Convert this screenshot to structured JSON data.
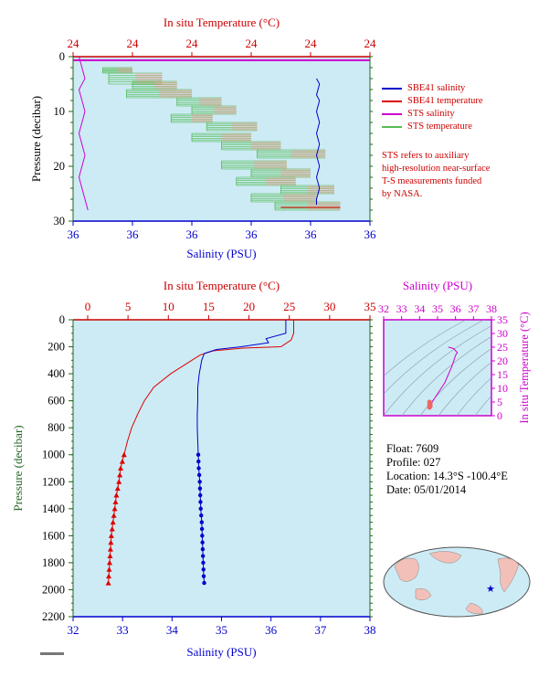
{
  "top_panel": {
    "title": "In situ Temperature (°C)",
    "xlabel": "Salinity (PSU)",
    "ylabel": "Pressure (decibar)",
    "temp_ticks": [
      "24",
      "24",
      "24",
      "24",
      "24",
      "24"
    ],
    "sal_ticks": [
      "36",
      "36",
      "36",
      "36",
      "36",
      "36"
    ],
    "p_ticks": [
      "0",
      "10",
      "20",
      "30"
    ]
  },
  "legend": [
    {
      "label": "SBE41 salinity",
      "color": "#0000cc"
    },
    {
      "label": "SBE41 temperature",
      "color": "#dd0000"
    },
    {
      "label": "STS salinity",
      "color": "#cc00cc"
    },
    {
      "label": "STS temperature",
      "color": "#55bb55"
    }
  ],
  "note_lines": [
    "STS refers to auxiliary",
    "high-resolution near-surface",
    "T-S measurements funded",
    "by NASA."
  ],
  "main_panel": {
    "title": "In situ Temperature (°C)",
    "xlabel": "Salinity (PSU)",
    "ylabel": "Pressure (decibar)",
    "temp_ticks": [
      "0",
      "5",
      "10",
      "15",
      "20",
      "25",
      "30",
      "35"
    ],
    "sal_ticks": [
      "32",
      "33",
      "34",
      "35",
      "36",
      "37",
      "38"
    ],
    "p_ticks": [
      "0",
      "200",
      "400",
      "600",
      "800",
      "1000",
      "1200",
      "1400",
      "1600",
      "1800",
      "2000",
      "2200"
    ]
  },
  "ts_panel": {
    "title": "Salinity (PSU)",
    "ylabel": "In situ Temperature (°C)",
    "sal_ticks": [
      "32",
      "33",
      "34",
      "35",
      "36",
      "37",
      "38"
    ],
    "temp_ticks": [
      "0",
      "5",
      "10",
      "15",
      "20",
      "25",
      "30",
      "35"
    ]
  },
  "info": {
    "float": "Float:  7609",
    "profile": "Profile:  027",
    "location": "Location:  14.3°S  -100.4°E",
    "date": "Date:  05/01/2014"
  },
  "colors": {
    "temperature": "#dd0000",
    "salinity": "#0000cc",
    "sts_salinity": "#cc00cc",
    "sts_temperature": "#55bb55",
    "plot_bg": "#cdebf5",
    "axis_red": "#cc0000",
    "axis_blue": "#0000cc",
    "ts_magenta": "#cc00cc"
  },
  "chart_data": [
    {
      "type": "line",
      "name_hint": "near-surface profile",
      "ylim": [
        30,
        0
      ],
      "sbe41_salinity_series": {
        "pressure": [
          4,
          5,
          7,
          8,
          10,
          12,
          14,
          16,
          18,
          20,
          22,
          24,
          26,
          27
        ],
        "salinity_pos": [
          0.82,
          0.83,
          0.82,
          0.83,
          0.82,
          0.83,
          0.82,
          0.83,
          0.82,
          0.83,
          0.82,
          0.83,
          0.82,
          0.82
        ]
      },
      "sts_salinity_series": {
        "pressure": [
          0,
          2,
          4,
          6,
          8,
          10,
          12,
          14,
          16,
          18,
          20,
          22,
          24,
          26,
          28
        ],
        "salinity_pos": [
          0.02,
          0.03,
          0.04,
          0.02,
          0.03,
          0.04,
          0.03,
          0.02,
          0.03,
          0.04,
          0.03,
          0.02,
          0.03,
          0.04,
          0.05
        ]
      }
    },
    {
      "type": "line",
      "xlim_temperature": [
        0,
        35
      ],
      "xlim_salinity": [
        32,
        38
      ],
      "ylim": [
        2200,
        0
      ],
      "temperature": {
        "pressure": [
          0,
          100,
          150,
          200,
          210,
          230,
          260,
          300,
          400,
          500,
          600,
          700,
          800,
          900,
          1000,
          1100,
          1200,
          1300,
          1400,
          1500,
          1600,
          1700,
          1800,
          1900,
          1950
        ],
        "values": [
          24.5,
          24.5,
          24.2,
          23.0,
          18.5,
          15.0,
          13.5,
          12.5,
          10.0,
          8.0,
          6.9,
          6.1,
          5.4,
          4.9,
          4.5,
          4.1,
          3.9,
          3.6,
          3.4,
          3.2,
          3.0,
          2.9,
          2.8,
          2.7,
          2.65
        ]
      },
      "salinity": {
        "pressure": [
          0,
          100,
          140,
          170,
          200,
          220,
          250,
          300,
          400,
          500,
          600,
          700,
          800,
          900,
          1000,
          1100,
          1200,
          1300,
          1400,
          1500,
          1600,
          1700,
          1800,
          1900,
          1950
        ],
        "values": [
          36.3,
          36.3,
          35.9,
          35.95,
          35.4,
          34.9,
          34.65,
          34.6,
          34.55,
          34.52,
          34.52,
          34.51,
          34.51,
          34.52,
          34.53,
          34.54,
          34.56,
          34.57,
          34.58,
          34.6,
          34.61,
          34.62,
          34.63,
          34.64,
          34.65
        ]
      },
      "sampled_markers_from_pressure": 1000
    },
    {
      "type": "scatter",
      "xlim": [
        32,
        38
      ],
      "ylim": [
        0,
        35
      ],
      "points": {
        "salinity": [
          34.55,
          34.6,
          34.7,
          34.8,
          34.9,
          35.0,
          35.2,
          35.4,
          35.6,
          35.8,
          35.9,
          36.0,
          36.1,
          35.9,
          35.6
        ],
        "temperature": [
          3,
          4,
          5,
          6,
          7,
          8,
          10,
          12,
          15,
          18,
          20,
          22,
          23,
          24.5,
          25
        ]
      }
    }
  ]
}
